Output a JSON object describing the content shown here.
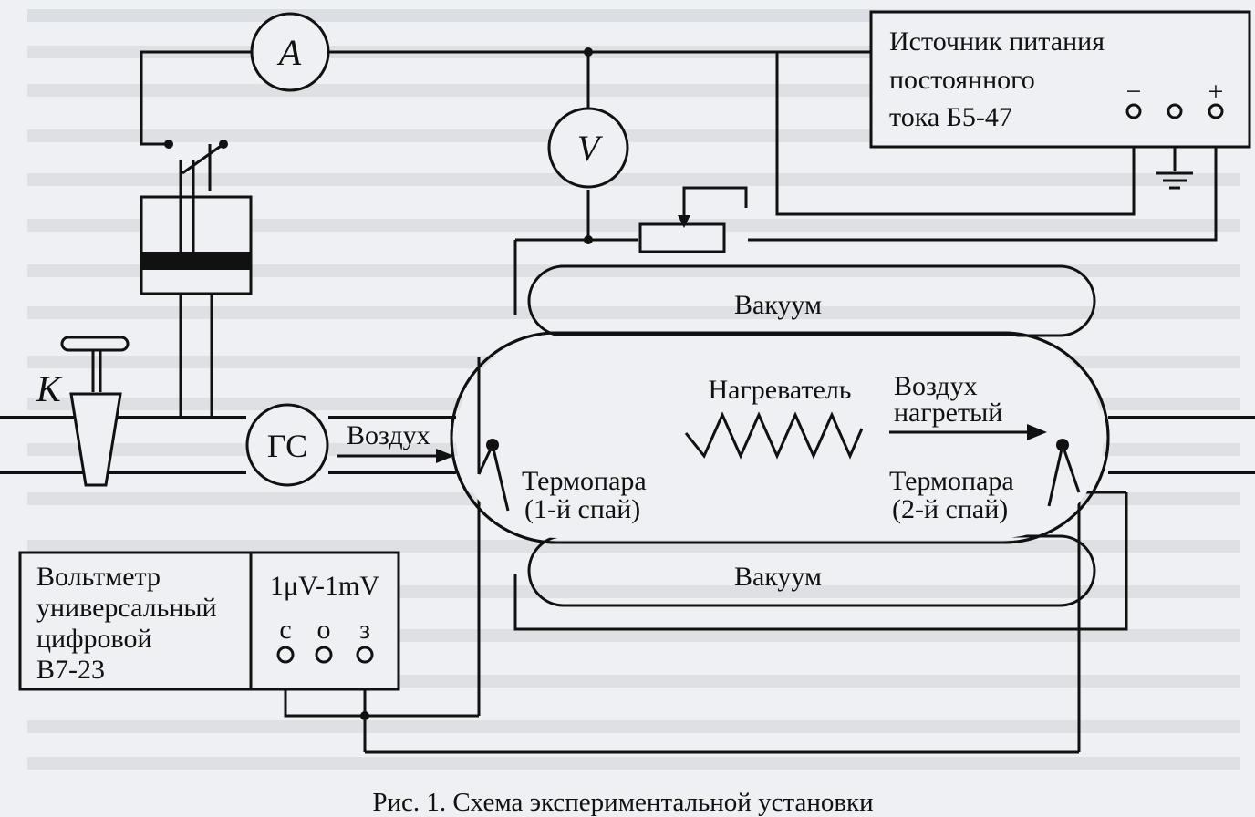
{
  "figure": {
    "caption": "Рис. 1. Схема экспериментальной установки",
    "ammeter": {
      "label": "A"
    },
    "voltmeter": {
      "label": "V"
    },
    "gas_meter": {
      "label": "ГС"
    },
    "valve": {
      "label": "K"
    },
    "power_supply": {
      "title_lines": [
        "Источник питания",
        "постоянного",
        "тока Б5-47"
      ],
      "terminal_minus": "−",
      "terminal_plus": "+"
    },
    "digital_voltmeter": {
      "title_lines": [
        "Вольтметр",
        "универсальный",
        "цифровой",
        "В7-23"
      ],
      "range": "1μV-1mV",
      "terminals": [
        "с",
        "о",
        "з"
      ]
    },
    "vessel": {
      "vacuum_top": "Вакуум",
      "vacuum_bottom": "Вакуум",
      "heater": "Нагреватель",
      "air_in": "Воздух",
      "air_heated_lines": [
        "Воздух",
        "нагретый"
      ],
      "thermocouple1_lines": [
        "Термопара",
        "(1-й спай)"
      ],
      "thermocouple2_lines": [
        "Термопара",
        "(2-й спай)"
      ]
    }
  }
}
